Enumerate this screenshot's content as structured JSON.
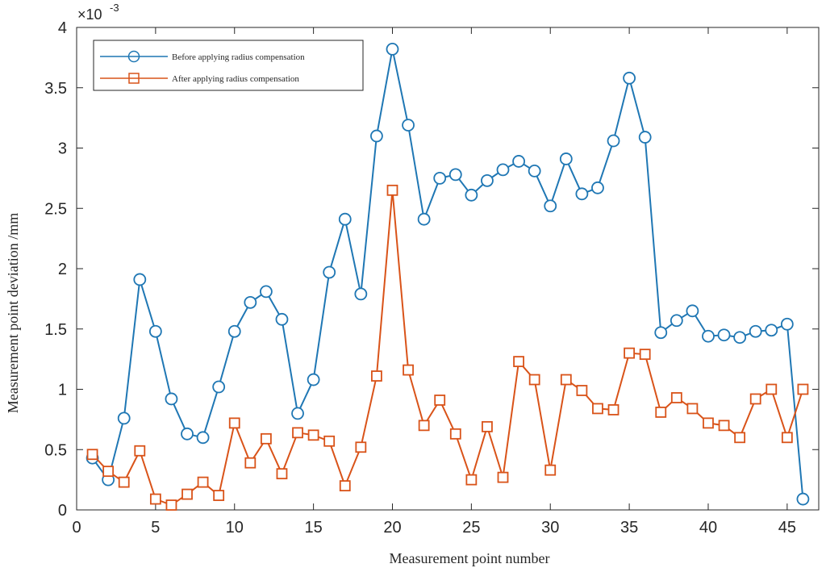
{
  "chart_data": {
    "type": "line",
    "xlabel": "Measurement point number",
    "ylabel": "Measurement point deviation /mm",
    "y_exponent": {
      "base": "×10",
      "power": "-3"
    },
    "xlim": [
      0,
      47
    ],
    "ylim": [
      0,
      4
    ],
    "x_ticks": [
      0,
      5,
      10,
      15,
      20,
      25,
      30,
      35,
      40,
      45
    ],
    "x_tick_labels": [
      "0",
      "5",
      "10",
      "15",
      "20",
      "25",
      "30",
      "35",
      "40",
      "45"
    ],
    "y_ticks": [
      0,
      0.5,
      1,
      1.5,
      2,
      2.5,
      3,
      3.5,
      4
    ],
    "y_tick_labels": [
      "0",
      "0.5",
      "1",
      "1.5",
      "2",
      "2.5",
      "3",
      "3.5",
      "4"
    ],
    "grid": false,
    "legend_position": "top-left",
    "x": [
      1,
      2,
      3,
      4,
      5,
      6,
      7,
      8,
      9,
      10,
      11,
      12,
      13,
      14,
      15,
      16,
      17,
      18,
      19,
      20,
      21,
      22,
      23,
      24,
      25,
      26,
      27,
      28,
      29,
      30,
      31,
      32,
      33,
      34,
      35,
      36,
      37,
      38,
      39,
      40,
      41,
      42,
      43,
      44,
      45,
      46
    ],
    "series": [
      {
        "name": "Before applying radius compensation",
        "color": "#1f77b4",
        "marker": "circle",
        "values": [
          0.43,
          0.25,
          0.76,
          1.91,
          1.48,
          0.92,
          0.63,
          0.6,
          1.02,
          1.48,
          1.72,
          1.81,
          1.58,
          0.8,
          1.08,
          1.97,
          2.41,
          1.79,
          3.1,
          3.82,
          3.19,
          2.41,
          2.75,
          2.78,
          2.61,
          2.73,
          2.82,
          2.89,
          2.81,
          2.52,
          2.91,
          2.62,
          2.67,
          3.06,
          3.58,
          3.09,
          1.47,
          1.57,
          1.65,
          1.44,
          1.45,
          1.43,
          1.48,
          1.49,
          1.54,
          0.09
        ]
      },
      {
        "name": "After applying radius compensation",
        "color": "#d95319",
        "marker": "square",
        "values": [
          0.46,
          0.32,
          0.23,
          0.49,
          0.09,
          0.04,
          0.13,
          0.23,
          0.12,
          0.72,
          0.39,
          0.59,
          0.3,
          0.64,
          0.62,
          0.57,
          0.2,
          0.52,
          1.11,
          2.65,
          1.16,
          0.7,
          0.91,
          0.63,
          0.25,
          0.69,
          0.27,
          1.23,
          1.08,
          0.33,
          1.08,
          0.99,
          0.84,
          0.83,
          1.3,
          1.29,
          0.81,
          0.93,
          0.84,
          0.72,
          0.7,
          0.6,
          0.92,
          1.0,
          0.6,
          1.0
        ]
      }
    ]
  }
}
